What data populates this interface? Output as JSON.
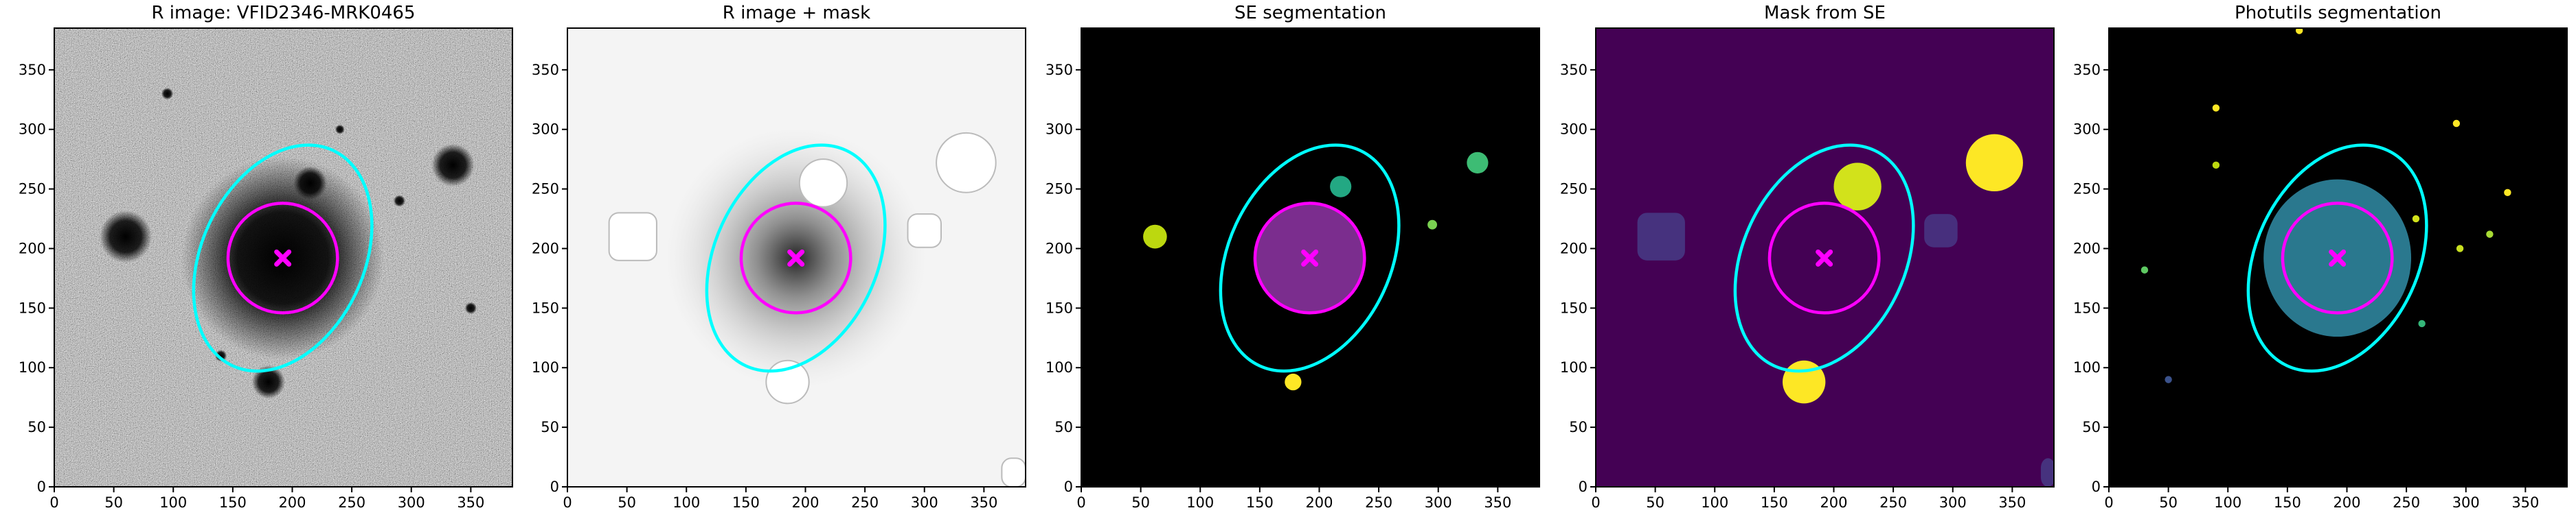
{
  "chart_data": [
    {
      "type": "image",
      "title": "R image: VFID2346-MRK0465",
      "background": "noise-gray",
      "xlim": [
        0,
        385
      ],
      "ylim": [
        0,
        385
      ],
      "xticks": [
        0,
        50,
        100,
        150,
        200,
        250,
        300,
        350
      ],
      "yticks": [
        0,
        50,
        100,
        150,
        200,
        250,
        300,
        350
      ],
      "ellipse": {
        "center": [
          192,
          192
        ],
        "semi_major": 100,
        "semi_minor": 68,
        "angle": 65,
        "color": "#00ffff"
      },
      "circle": {
        "center": [
          192,
          192
        ],
        "radius": 46,
        "color": "#ff00ff"
      },
      "marker": [
        192,
        192
      ]
    },
    {
      "type": "image",
      "title": "R image + mask",
      "background": "mask-white",
      "xlim": [
        0,
        385
      ],
      "ylim": [
        0,
        385
      ],
      "xticks": [
        0,
        50,
        100,
        150,
        200,
        250,
        300,
        350
      ],
      "yticks": [
        0,
        50,
        100,
        150,
        200,
        250,
        300,
        350
      ],
      "ellipse": {
        "center": [
          192,
          192
        ],
        "semi_major": 100,
        "semi_minor": 68,
        "angle": 65,
        "color": "#00ffff"
      },
      "circle": {
        "center": [
          192,
          192
        ],
        "radius": 46,
        "color": "#ff00ff"
      },
      "marker": [
        192,
        192
      ]
    },
    {
      "type": "image",
      "title": "SE segmentation",
      "background": "seg-black",
      "xlim": [
        0,
        385
      ],
      "ylim": [
        0,
        385
      ],
      "xticks": [
        0,
        50,
        100,
        150,
        200,
        250,
        300,
        350
      ],
      "yticks": [
        0,
        50,
        100,
        150,
        200,
        250,
        300,
        350
      ],
      "ellipse": {
        "center": [
          192,
          192
        ],
        "semi_major": 100,
        "semi_minor": 68,
        "angle": 65,
        "color": "#00ffff"
      },
      "circle": {
        "center": [
          192,
          192
        ],
        "radius": 46,
        "color": "#ff00ff"
      },
      "marker": [
        192,
        192
      ]
    },
    {
      "type": "image",
      "title": "Mask from SE",
      "background": "mask-purple",
      "xlim": [
        0,
        385
      ],
      "ylim": [
        0,
        385
      ],
      "xticks": [
        0,
        50,
        100,
        150,
        200,
        250,
        300,
        350
      ],
      "yticks": [
        0,
        50,
        100,
        150,
        200,
        250,
        300,
        350
      ],
      "ellipse": {
        "center": [
          192,
          192
        ],
        "semi_major": 100,
        "semi_minor": 68,
        "angle": 65,
        "color": "#00ffff"
      },
      "circle": {
        "center": [
          192,
          192
        ],
        "radius": 46,
        "color": "#ff00ff"
      },
      "marker": [
        192,
        192
      ]
    },
    {
      "type": "image",
      "title": "Photutils segmentation",
      "background": "phot-black",
      "xlim": [
        0,
        385
      ],
      "ylim": [
        0,
        385
      ],
      "xticks": [
        0,
        50,
        100,
        150,
        200,
        250,
        300,
        350
      ],
      "yticks": [
        0,
        50,
        100,
        150,
        200,
        250,
        300,
        350
      ],
      "ellipse": {
        "center": [
          192,
          192
        ],
        "semi_major": 100,
        "semi_minor": 68,
        "angle": 65,
        "color": "#00ffff"
      },
      "circle": {
        "center": [
          192,
          192
        ],
        "radius": 46,
        "color": "#ff00ff"
      },
      "marker": [
        192,
        192
      ]
    }
  ]
}
